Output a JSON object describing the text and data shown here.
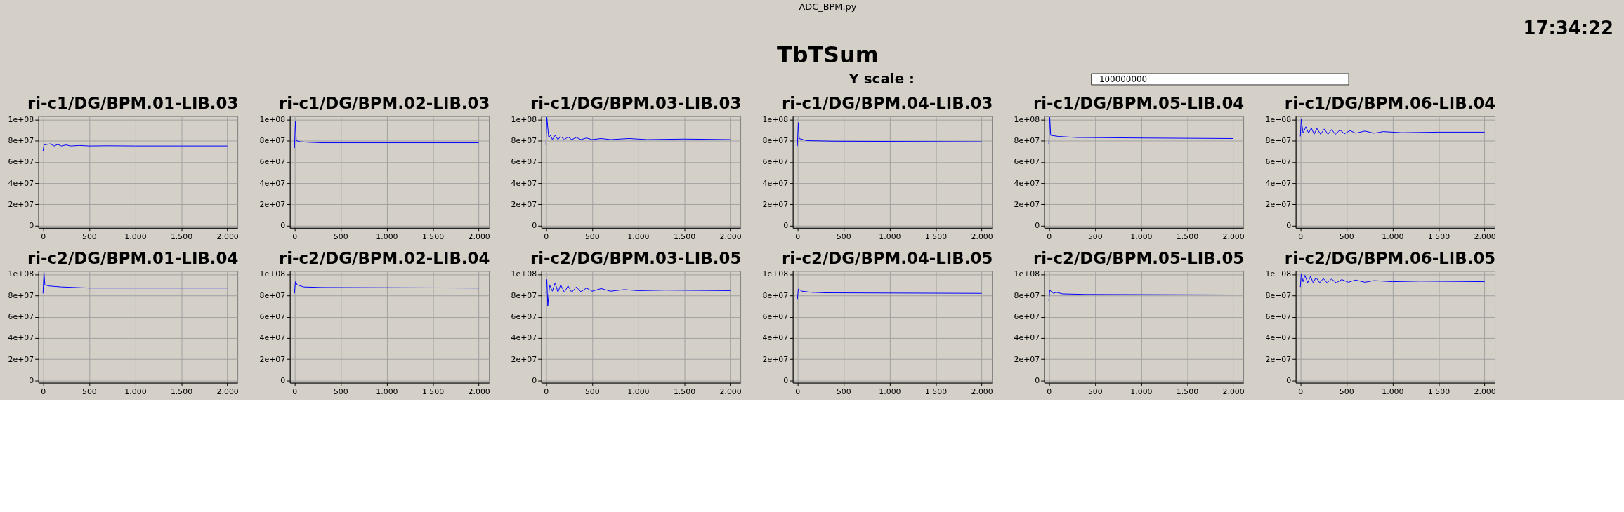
{
  "chart_data": [
    {
      "type": "other",
      "title": "TbTSum",
      "annotations": [
        "ADC_BPM.py",
        "17:34:22",
        "Y scale :",
        "100000000"
      ]
    },
    {
      "type": "line",
      "title": "ri-c1/DG/BPM.01-LIB.03",
      "xlim": [
        -50,
        2110
      ],
      "ylim": [
        -2000000,
        103000000
      ],
      "xticks": [
        0,
        500,
        {
          "value": 1000,
          "label": "1.000"
        },
        {
          "value": 1500,
          "label": "1.500"
        },
        {
          "value": 2000,
          "label": "2.000"
        }
      ],
      "yticks": [
        0,
        {
          "value": 20000000,
          "label": "2e+07"
        },
        {
          "value": 40000000,
          "label": "4e+07"
        },
        {
          "value": 60000000,
          "label": "6e+07"
        },
        {
          "value": 80000000,
          "label": "8e+07"
        },
        {
          "value": 100000000,
          "label": "1e+08"
        }
      ],
      "grid": true,
      "marker": "none",
      "series": [
        {
          "color": "#0000ff",
          "x": [
            0,
            10,
            80,
            120,
            160,
            200,
            250,
            300,
            400,
            500,
            700,
            1000,
            2000
          ],
          "values": [
            70000000,
            76000000,
            77000000,
            75000000,
            76500000,
            75000000,
            76000000,
            75000000,
            75500000,
            75000000,
            75200000,
            75000000,
            75000000
          ]
        }
      ]
    },
    {
      "type": "line",
      "title": "ri-c1/DG/BPM.02-LIB.03",
      "xlim": [
        -50,
        2110
      ],
      "ylim": [
        -2000000,
        103000000
      ],
      "xticks": [
        0,
        500,
        {
          "value": 1000,
          "label": "1.000"
        },
        {
          "value": 1500,
          "label": "1.500"
        },
        {
          "value": 2000,
          "label": "2.000"
        }
      ],
      "yticks": [
        0,
        {
          "value": 20000000,
          "label": "2e+07"
        },
        {
          "value": 40000000,
          "label": "4e+07"
        },
        {
          "value": 60000000,
          "label": "6e+07"
        },
        {
          "value": 80000000,
          "label": "8e+07"
        },
        {
          "value": 100000000,
          "label": "1e+08"
        }
      ],
      "grid": true,
      "marker": "none",
      "series": [
        {
          "color": "#0000ff",
          "x": [
            0,
            10,
            20,
            60,
            150,
            300,
            2000
          ],
          "values": [
            73000000,
            98000000,
            80000000,
            79000000,
            78500000,
            78000000,
            78000000
          ]
        }
      ]
    },
    {
      "type": "line",
      "title": "ri-c1/DG/BPM.03-LIB.03",
      "xlim": [
        -50,
        2110
      ],
      "ylim": [
        -2000000,
        103000000
      ],
      "xticks": [
        0,
        500,
        {
          "value": 1000,
          "label": "1.000"
        },
        {
          "value": 1500,
          "label": "1.500"
        },
        {
          "value": 2000,
          "label": "2.000"
        }
      ],
      "yticks": [
        0,
        {
          "value": 20000000,
          "label": "2e+07"
        },
        {
          "value": 40000000,
          "label": "4e+07"
        },
        {
          "value": 60000000,
          "label": "6e+07"
        },
        {
          "value": 80000000,
          "label": "8e+07"
        },
        {
          "value": 100000000,
          "label": "1e+08"
        }
      ],
      "grid": true,
      "marker": "none",
      "series": [
        {
          "color": "#0000ff",
          "x": [
            0,
            10,
            30,
            50,
            70,
            100,
            130,
            160,
            200,
            240,
            280,
            330,
            380,
            440,
            500,
            600,
            700,
            900,
            1100,
            1500,
            2000
          ],
          "values": [
            76000000,
            102000000,
            83000000,
            85000000,
            81000000,
            85000000,
            81000000,
            84000000,
            81000000,
            83500000,
            81000000,
            83000000,
            81000000,
            82500000,
            81000000,
            82000000,
            81000000,
            82000000,
            81000000,
            81500000,
            81000000
          ]
        }
      ]
    },
    {
      "type": "line",
      "title": "ri-c1/DG/BPM.04-LIB.03",
      "xlim": [
        -50,
        2110
      ],
      "ylim": [
        -2000000,
        103000000
      ],
      "xticks": [
        0,
        500,
        {
          "value": 1000,
          "label": "1.000"
        },
        {
          "value": 1500,
          "label": "1.500"
        },
        {
          "value": 2000,
          "label": "2.000"
        }
      ],
      "yticks": [
        0,
        {
          "value": 20000000,
          "label": "2e+07"
        },
        {
          "value": 40000000,
          "label": "4e+07"
        },
        {
          "value": 60000000,
          "label": "6e+07"
        },
        {
          "value": 80000000,
          "label": "8e+07"
        },
        {
          "value": 100000000,
          "label": "1e+08"
        }
      ],
      "grid": true,
      "marker": "none",
      "series": [
        {
          "color": "#0000ff",
          "x": [
            0,
            10,
            20,
            100,
            400,
            2000
          ],
          "values": [
            75000000,
            97000000,
            82000000,
            80000000,
            79500000,
            79000000
          ]
        }
      ]
    },
    {
      "type": "line",
      "title": "ri-c1/DG/BPM.05-LIB.04",
      "xlim": [
        -50,
        2110
      ],
      "ylim": [
        -2000000,
        103000000
      ],
      "xticks": [
        0,
        500,
        {
          "value": 1000,
          "label": "1.000"
        },
        {
          "value": 1500,
          "label": "1.500"
        },
        {
          "value": 2000,
          "label": "2.000"
        }
      ],
      "yticks": [
        0,
        {
          "value": 20000000,
          "label": "2e+07"
        },
        {
          "value": 40000000,
          "label": "4e+07"
        },
        {
          "value": 60000000,
          "label": "6e+07"
        },
        {
          "value": 80000000,
          "label": "8e+07"
        },
        {
          "value": 100000000,
          "label": "1e+08"
        }
      ],
      "grid": true,
      "marker": "none",
      "series": [
        {
          "color": "#0000ff",
          "x": [
            0,
            10,
            20,
            100,
            300,
            1000,
            2000
          ],
          "values": [
            77000000,
            102000000,
            85000000,
            84000000,
            83000000,
            82500000,
            82000000
          ]
        }
      ]
    },
    {
      "type": "line",
      "title": "ri-c1/DG/BPM.06-LIB.04",
      "xlim": [
        -50,
        2110
      ],
      "ylim": [
        -2000000,
        103000000
      ],
      "xticks": [
        0,
        500,
        {
          "value": 1000,
          "label": "1.000"
        },
        {
          "value": 1500,
          "label": "1.500"
        },
        {
          "value": 2000,
          "label": "2.000"
        }
      ],
      "yticks": [
        0,
        {
          "value": 20000000,
          "label": "2e+07"
        },
        {
          "value": 40000000,
          "label": "4e+07"
        },
        {
          "value": 60000000,
          "label": "6e+07"
        },
        {
          "value": 80000000,
          "label": "8e+07"
        },
        {
          "value": 100000000,
          "label": "1e+08"
        }
      ],
      "grid": true,
      "marker": "none",
      "series": [
        {
          "color": "#0000ff",
          "x": [
            0,
            10,
            30,
            60,
            90,
            120,
            150,
            180,
            220,
            260,
            300,
            340,
            380,
            430,
            480,
            540,
            600,
            700,
            800,
            900,
            1100,
            1500,
            2000
          ],
          "values": [
            84000000,
            100000000,
            87000000,
            93000000,
            87000000,
            92000000,
            86000000,
            91500000,
            86000000,
            91000000,
            86000000,
            90500000,
            86000000,
            90000000,
            86500000,
            89500000,
            87000000,
            89000000,
            87000000,
            88500000,
            87500000,
            88000000,
            88000000
          ]
        }
      ]
    },
    {
      "type": "line",
      "title": "ri-c2/DG/BPM.01-LIB.04",
      "xlim": [
        -50,
        2110
      ],
      "ylim": [
        -2000000,
        103000000
      ],
      "xticks": [
        0,
        500,
        {
          "value": 1000,
          "label": "1.000"
        },
        {
          "value": 1500,
          "label": "1.500"
        },
        {
          "value": 2000,
          "label": "2.000"
        }
      ],
      "yticks": [
        0,
        {
          "value": 20000000,
          "label": "2e+07"
        },
        {
          "value": 40000000,
          "label": "4e+07"
        },
        {
          "value": 60000000,
          "label": "6e+07"
        },
        {
          "value": 80000000,
          "label": "8e+07"
        },
        {
          "value": 100000000,
          "label": "1e+08"
        }
      ],
      "grid": true,
      "marker": "none",
      "series": [
        {
          "color": "#0000ff",
          "x": [
            0,
            10,
            20,
            60,
            200,
            500,
            2000
          ],
          "values": [
            82000000,
            102000000,
            90000000,
            89000000,
            88000000,
            87000000,
            87000000
          ]
        }
      ]
    },
    {
      "type": "line",
      "title": "ri-c2/DG/BPM.02-LIB.04",
      "xlim": [
        -50,
        2110
      ],
      "ylim": [
        -2000000,
        103000000
      ],
      "xticks": [
        0,
        500,
        {
          "value": 1000,
          "label": "1.000"
        },
        {
          "value": 1500,
          "label": "1.500"
        },
        {
          "value": 2000,
          "label": "2.000"
        }
      ],
      "yticks": [
        0,
        {
          "value": 20000000,
          "label": "2e+07"
        },
        {
          "value": 40000000,
          "label": "4e+07"
        },
        {
          "value": 60000000,
          "label": "6e+07"
        },
        {
          "value": 80000000,
          "label": "8e+07"
        },
        {
          "value": 100000000,
          "label": "1e+08"
        }
      ],
      "grid": true,
      "marker": "none",
      "series": [
        {
          "color": "#0000ff",
          "x": [
            0,
            10,
            30,
            100,
            300,
            2000
          ],
          "values": [
            82000000,
            93000000,
            90000000,
            88000000,
            87500000,
            87000000
          ]
        }
      ]
    },
    {
      "type": "line",
      "title": "ri-c2/DG/BPM.03-LIB.05",
      "xlim": [
        -50,
        2110
      ],
      "ylim": [
        -2000000,
        103000000
      ],
      "xticks": [
        0,
        500,
        {
          "value": 1000,
          "label": "1.000"
        },
        {
          "value": 1500,
          "label": "1.500"
        },
        {
          "value": 2000,
          "label": "2.000"
        }
      ],
      "yticks": [
        0,
        {
          "value": 20000000,
          "label": "2e+07"
        },
        {
          "value": 40000000,
          "label": "4e+07"
        },
        {
          "value": 60000000,
          "label": "6e+07"
        },
        {
          "value": 80000000,
          "label": "8e+07"
        },
        {
          "value": 100000000,
          "label": "1e+08"
        }
      ],
      "grid": true,
      "marker": "none",
      "series": [
        {
          "color": "#0000ff",
          "x": [
            0,
            10,
            20,
            40,
            70,
            100,
            130,
            160,
            200,
            240,
            280,
            330,
            380,
            440,
            500,
            600,
            700,
            850,
            1000,
            1300,
            2000
          ],
          "values": [
            82000000,
            95000000,
            70000000,
            90000000,
            84000000,
            92000000,
            83000000,
            90000000,
            83000000,
            89000000,
            83000000,
            88000000,
            83500000,
            87000000,
            84000000,
            86500000,
            84000000,
            85500000,
            84500000,
            85000000,
            84500000
          ]
        }
      ]
    },
    {
      "type": "line",
      "title": "ri-c2/DG/BPM.04-LIB.05",
      "xlim": [
        -50,
        2110
      ],
      "ylim": [
        -2000000,
        103000000
      ],
      "xticks": [
        0,
        500,
        {
          "value": 1000,
          "label": "1.000"
        },
        {
          "value": 1500,
          "label": "1.500"
        },
        {
          "value": 2000,
          "label": "2.000"
        }
      ],
      "yticks": [
        0,
        {
          "value": 20000000,
          "label": "2e+07"
        },
        {
          "value": 40000000,
          "label": "4e+07"
        },
        {
          "value": 60000000,
          "label": "6e+07"
        },
        {
          "value": 80000000,
          "label": "8e+07"
        },
        {
          "value": 100000000,
          "label": "1e+08"
        }
      ],
      "grid": true,
      "marker": "none",
      "series": [
        {
          "color": "#0000ff",
          "x": [
            0,
            10,
            50,
            150,
            300,
            2000
          ],
          "values": [
            76000000,
            86000000,
            84000000,
            83000000,
            82500000,
            82000000
          ]
        }
      ]
    },
    {
      "type": "line",
      "title": "ri-c2/DG/BPM.05-LIB.05",
      "xlim": [
        -50,
        2110
      ],
      "ylim": [
        -2000000,
        103000000
      ],
      "xticks": [
        0,
        500,
        {
          "value": 1000,
          "label": "1.000"
        },
        {
          "value": 1500,
          "label": "1.500"
        },
        {
          "value": 2000,
          "label": "2.000"
        }
      ],
      "yticks": [
        0,
        {
          "value": 20000000,
          "label": "2e+07"
        },
        {
          "value": 40000000,
          "label": "4e+07"
        },
        {
          "value": 60000000,
          "label": "6e+07"
        },
        {
          "value": 80000000,
          "label": "8e+07"
        },
        {
          "value": 100000000,
          "label": "1e+08"
        }
      ],
      "grid": true,
      "marker": "none",
      "series": [
        {
          "color": "#0000ff",
          "x": [
            0,
            10,
            50,
            80,
            150,
            400,
            2000
          ],
          "values": [
            75000000,
            85000000,
            82000000,
            83000000,
            81500000,
            81000000,
            80500000
          ]
        }
      ]
    },
    {
      "type": "line",
      "title": "ri-c2/DG/BPM.06-LIB.05",
      "xlim": [
        -50,
        2110
      ],
      "ylim": [
        -2000000,
        103000000
      ],
      "xticks": [
        0,
        500,
        {
          "value": 1000,
          "label": "1.000"
        },
        {
          "value": 1500,
          "label": "1.500"
        },
        {
          "value": 2000,
          "label": "2.000"
        }
      ],
      "yticks": [
        0,
        {
          "value": 20000000,
          "label": "2e+07"
        },
        {
          "value": 40000000,
          "label": "4e+07"
        },
        {
          "value": 60000000,
          "label": "6e+07"
        },
        {
          "value": 80000000,
          "label": "8e+07"
        },
        {
          "value": 100000000,
          "label": "1e+08"
        }
      ],
      "grid": true,
      "marker": "none",
      "series": [
        {
          "color": "#0000ff",
          "x": [
            0,
            10,
            30,
            50,
            80,
            110,
            140,
            170,
            210,
            250,
            290,
            340,
            390,
            450,
            520,
            600,
            700,
            800,
            1000,
            1300,
            2000
          ],
          "values": [
            88000000,
            100000000,
            93000000,
            99000000,
            92000000,
            98000000,
            92000000,
            97000000,
            92000000,
            96000000,
            92000000,
            95500000,
            92000000,
            95000000,
            92500000,
            94500000,
            92500000,
            94000000,
            93000000,
            93500000,
            93000000
          ]
        }
      ]
    }
  ]
}
